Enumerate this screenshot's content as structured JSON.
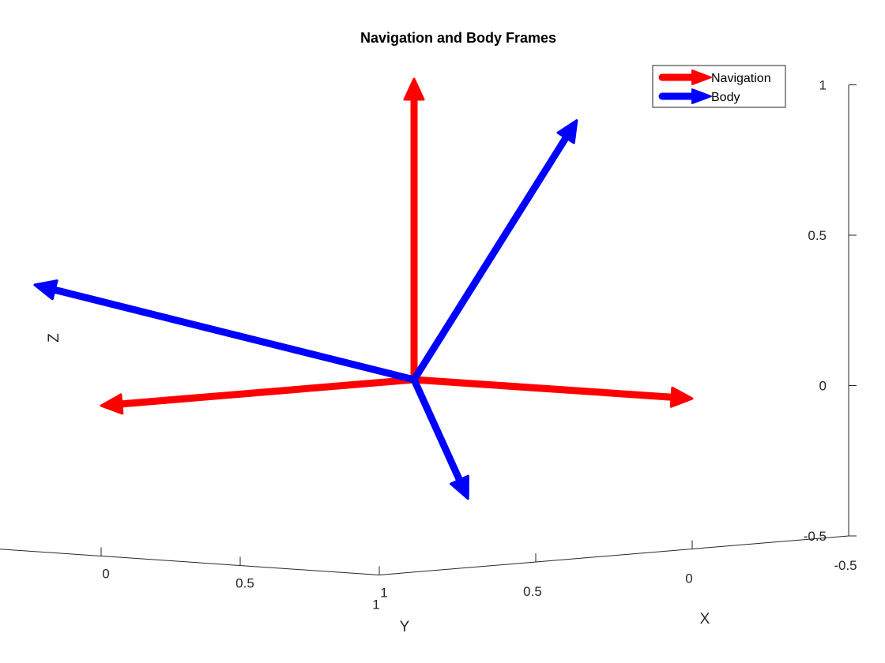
{
  "chart_data": {
    "type": "quiver3",
    "title": "Navigation and Body Frames",
    "xlabel": "X",
    "ylabel": "Y",
    "zlabel": "Z",
    "xlim": [
      -0.5,
      1
    ],
    "ylim": [
      -0.5,
      1
    ],
    "zlim": [
      -0.5,
      1
    ],
    "x_ticks": [
      "-0.5",
      "0",
      "0.5",
      "1"
    ],
    "y_ticks": [
      "-0.5",
      "0",
      "0.5",
      "1"
    ],
    "z_ticks": [
      "-0.5",
      "0",
      "0.5",
      "1"
    ],
    "grid": false,
    "legend_position": "top-right",
    "origin": [
      0,
      0,
      0
    ],
    "series": [
      {
        "name": "Navigation",
        "color": "#ff0000",
        "vectors": [
          [
            1,
            0,
            0
          ],
          [
            0,
            1,
            0
          ],
          [
            0,
            0,
            1
          ]
        ]
      },
      {
        "name": "Body",
        "color": "#0000ff",
        "vectors": [
          [
            0.79,
            0.53,
            -0.3
          ],
          [
            -0.43,
            0.83,
            0.36
          ],
          [
            0.45,
            -0.12,
            0.88
          ]
        ]
      }
    ]
  }
}
